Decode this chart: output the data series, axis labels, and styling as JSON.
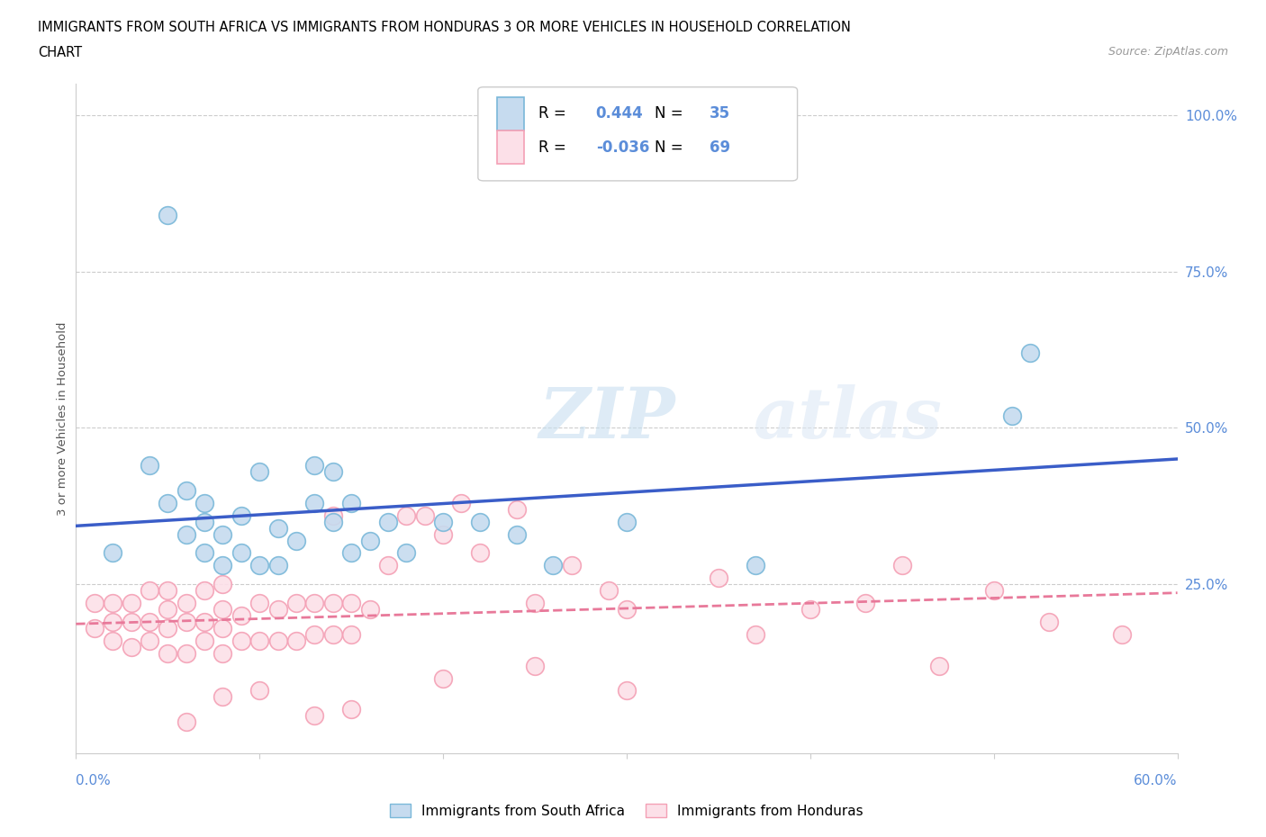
{
  "title_line1": "IMMIGRANTS FROM SOUTH AFRICA VS IMMIGRANTS FROM HONDURAS 3 OR MORE VEHICLES IN HOUSEHOLD CORRELATION",
  "title_line2": "CHART",
  "source": "Source: ZipAtlas.com",
  "ylabel": "3 or more Vehicles in Household",
  "xlim": [
    0.0,
    0.6
  ],
  "ylim": [
    -0.02,
    1.05
  ],
  "south_africa_color": "#7ab8d9",
  "south_africa_fill": "#c6dbef",
  "honduras_color": "#f4a0b5",
  "honduras_fill": "#fce0e8",
  "legend_sa_R": "0.444",
  "legend_sa_N": "35",
  "legend_hn_R": "-0.036",
  "legend_hn_N": "69",
  "trend_sa_color": "#3a5dc8",
  "trend_hn_color": "#e8799a",
  "ytick_color": "#5b8dd9",
  "watermark_zip": "ZIP",
  "watermark_atlas": "atlas",
  "south_africa_x": [
    0.02,
    0.04,
    0.05,
    0.06,
    0.06,
    0.07,
    0.07,
    0.07,
    0.08,
    0.08,
    0.09,
    0.09,
    0.1,
    0.1,
    0.11,
    0.11,
    0.12,
    0.13,
    0.13,
    0.14,
    0.14,
    0.15,
    0.15,
    0.16,
    0.17,
    0.18,
    0.2,
    0.22,
    0.24,
    0.26,
    0.3,
    0.37,
    0.51,
    0.52,
    0.05
  ],
  "south_africa_y": [
    0.3,
    0.44,
    0.38,
    0.33,
    0.4,
    0.3,
    0.35,
    0.38,
    0.28,
    0.33,
    0.3,
    0.36,
    0.28,
    0.43,
    0.28,
    0.34,
    0.32,
    0.44,
    0.38,
    0.35,
    0.43,
    0.3,
    0.38,
    0.32,
    0.35,
    0.3,
    0.35,
    0.35,
    0.33,
    0.28,
    0.35,
    0.28,
    0.52,
    0.62,
    0.84
  ],
  "honduras_x": [
    0.01,
    0.01,
    0.02,
    0.02,
    0.02,
    0.03,
    0.03,
    0.03,
    0.04,
    0.04,
    0.04,
    0.05,
    0.05,
    0.05,
    0.05,
    0.06,
    0.06,
    0.06,
    0.07,
    0.07,
    0.07,
    0.08,
    0.08,
    0.08,
    0.08,
    0.09,
    0.09,
    0.1,
    0.1,
    0.11,
    0.11,
    0.12,
    0.12,
    0.13,
    0.13,
    0.14,
    0.14,
    0.14,
    0.15,
    0.15,
    0.16,
    0.17,
    0.18,
    0.19,
    0.2,
    0.21,
    0.22,
    0.24,
    0.25,
    0.27,
    0.29,
    0.3,
    0.35,
    0.37,
    0.4,
    0.43,
    0.45,
    0.47,
    0.5,
    0.53,
    0.57,
    0.3,
    0.15,
    0.13,
    0.2,
    0.08,
    0.06,
    0.1,
    0.25
  ],
  "honduras_y": [
    0.18,
    0.22,
    0.16,
    0.19,
    0.22,
    0.15,
    0.19,
    0.22,
    0.16,
    0.19,
    0.24,
    0.14,
    0.18,
    0.21,
    0.24,
    0.14,
    0.19,
    0.22,
    0.16,
    0.19,
    0.24,
    0.14,
    0.18,
    0.21,
    0.25,
    0.16,
    0.2,
    0.16,
    0.22,
    0.16,
    0.21,
    0.16,
    0.22,
    0.17,
    0.22,
    0.17,
    0.22,
    0.36,
    0.17,
    0.22,
    0.21,
    0.28,
    0.36,
    0.36,
    0.33,
    0.38,
    0.3,
    0.37,
    0.22,
    0.28,
    0.24,
    0.21,
    0.26,
    0.17,
    0.21,
    0.22,
    0.28,
    0.12,
    0.24,
    0.19,
    0.17,
    0.08,
    0.05,
    0.04,
    0.1,
    0.07,
    0.03,
    0.08,
    0.12
  ]
}
